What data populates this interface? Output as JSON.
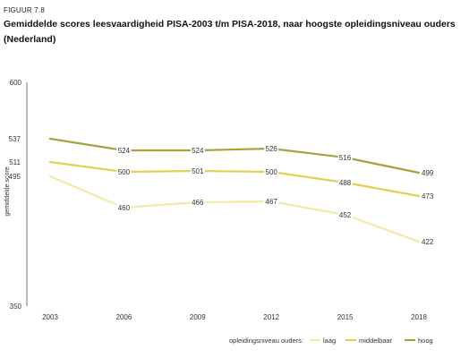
{
  "figure": {
    "label": "FIGUUR 7.8",
    "title_line1": "Gemiddelde scores leesvaardigheid PISA-2003 t/m PISA-2018, naar hoogste opleidingsniveau ouders",
    "title_line2": "(Nederland)"
  },
  "chart_data": {
    "type": "line",
    "title": "Gemiddelde scores leesvaardigheid PISA-2003 t/m PISA-2018, naar hoogste opleidingsniveau ouders (Nederland)",
    "x": [
      "2003",
      "2006",
      "2009",
      "2012",
      "2015",
      "2018"
    ],
    "ylabel": "gemiddelde score",
    "xlabel": "",
    "ylim": [
      350,
      600
    ],
    "yticks": [
      "350",
      "600"
    ],
    "grid": false,
    "legend": {
      "placement": "bottom-right",
      "title": "opleidingsniveau ouders:"
    },
    "series": [
      {
        "name": "laag",
        "color": "#f2eaa6",
        "values": [
          495,
          460,
          466,
          467,
          452,
          422
        ]
      },
      {
        "name": "middelbaar",
        "color": "#e3cf54",
        "values": [
          511,
          500,
          501,
          500,
          488,
          473
        ]
      },
      {
        "name": "hoog",
        "color": "#a9a13c",
        "values": [
          537,
          524,
          524,
          526,
          516,
          499
        ]
      }
    ]
  }
}
